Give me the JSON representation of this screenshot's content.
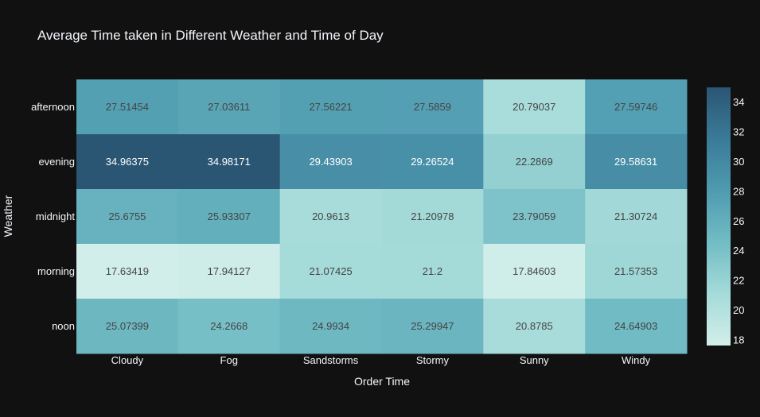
{
  "chart_data": {
    "type": "heatmap",
    "title": "Average Time taken in Different Weather and Time of Day",
    "xlabel": "Order Time",
    "ylabel": "Weather",
    "x": [
      "Cloudy",
      "Fog",
      "Sandstorms",
      "Stormy",
      "Sunny",
      "Windy"
    ],
    "y": [
      "afternoon",
      "evening",
      "midnight",
      "morning",
      "noon"
    ],
    "z": [
      [
        "27.51454",
        "27.03611",
        "27.56221",
        "27.5859",
        "20.79037",
        "27.59746"
      ],
      [
        "34.96375",
        "34.98171",
        "29.43903",
        "29.26524",
        "22.2869",
        "29.58631"
      ],
      [
        "25.6755",
        "25.93307",
        "20.9613",
        "21.20978",
        "23.79059",
        "21.30724"
      ],
      [
        "17.63419",
        "17.94127",
        "21.07425",
        "21.2",
        "17.84603",
        "21.57353"
      ],
      [
        "25.07399",
        "24.2668",
        "24.9934",
        "25.29947",
        "20.8785",
        "24.64903"
      ]
    ],
    "colorbar": {
      "ticks": [
        "18",
        "20",
        "22",
        "24",
        "26",
        "28",
        "30",
        "32",
        "34"
      ],
      "range": [
        17.63419,
        34.98171
      ]
    },
    "colorscale": [
      "#d2eeea",
      "#a5dbd9",
      "#72bcc4",
      "#4f9bb0",
      "#3a7b98",
      "#2a5674"
    ]
  }
}
